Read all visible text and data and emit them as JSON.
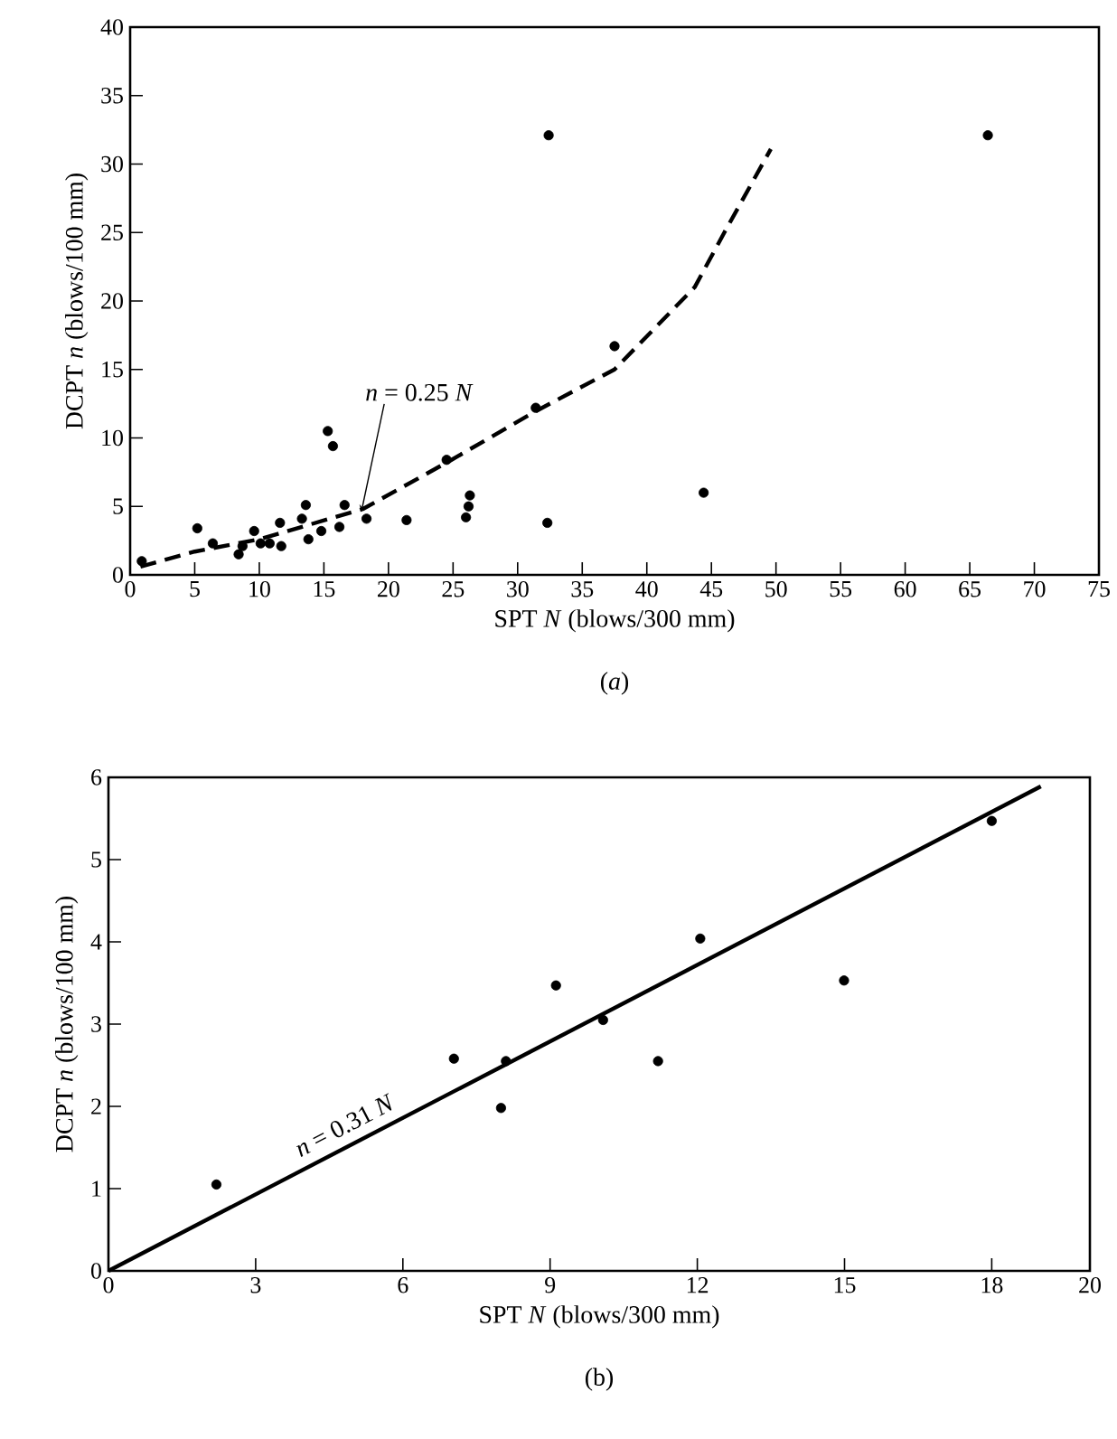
{
  "chart_data": [
    {
      "type": "scatter",
      "xlabel": "SPT *N* (blows/300 mm)",
      "ylabel": "DCPT *n* (blows/100 mm)",
      "xlim": [
        0,
        75
      ],
      "ylim": [
        0,
        40
      ],
      "xticks": [
        0,
        5,
        10,
        15,
        20,
        25,
        30,
        35,
        40,
        45,
        50,
        55,
        60,
        65,
        70,
        75
      ],
      "yticks": [
        0,
        5,
        10,
        15,
        20,
        25,
        30,
        35,
        40
      ],
      "series": [
        {
          "marker": "circle",
          "color": "#000000",
          "x": [
            0.9,
            5.2,
            6.4,
            8.4,
            8.7,
            9.6,
            10.1,
            10.8,
            11.6,
            11.7,
            13.3,
            13.6,
            13.8,
            14.8,
            15.3,
            15.7,
            16.2,
            16.6,
            18.3,
            21.4,
            24.5,
            26.0,
            26.2,
            26.3,
            31.4,
            32.4,
            32.3,
            37.5,
            44.4,
            66.4
          ],
          "values": [
            1.0,
            3.4,
            2.3,
            1.5,
            2.1,
            3.2,
            2.3,
            2.3,
            3.8,
            2.1,
            4.1,
            5.1,
            2.6,
            3.2,
            10.5,
            9.4,
            3.5,
            5.1,
            4.1,
            4.0,
            8.4,
            4.2,
            5.0,
            5.8,
            12.2,
            32.1,
            3.8,
            16.7,
            6.0,
            32.1
          ]
        },
        {
          "type": "line",
          "color": "#000000",
          "line_style": "dashed",
          "x": [
            0.8,
            5,
            10,
            18,
            24.7,
            31.3,
            37.5,
            43.7,
            46,
            49.6
          ],
          "values": [
            0.6,
            1.7,
            2.6,
            4.8,
            8.3,
            11.9,
            15,
            21,
            25,
            31.1
          ]
        }
      ],
      "annotations": [
        {
          "text": "*n* = 0.25 *N*",
          "x": 17.9,
          "y": 4.6
        },
        "(*a*)"
      ]
    },
    {
      "type": "scatter",
      "xlabel": "SPT *N* (blows/300 mm)",
      "ylabel": "DCPT *n* (blows/100 mm)",
      "xlim": [
        0,
        20
      ],
      "ylim": [
        0,
        6
      ],
      "xticks": [
        0,
        3,
        6,
        9,
        12,
        15,
        18,
        20
      ],
      "yticks": [
        0,
        1,
        2,
        3,
        4,
        5,
        6
      ],
      "series": [
        {
          "marker": "circle",
          "color": "#000000",
          "x": [
            2.2,
            7.04,
            8.0,
            8.1,
            9.12,
            10.08,
            11.2,
            12.06,
            14.99,
            18.0
          ],
          "values": [
            1.05,
            2.58,
            1.98,
            2.55,
            3.47,
            3.05,
            2.55,
            4.04,
            3.53,
            5.47
          ]
        },
        {
          "type": "line",
          "color": "#000000",
          "line_style": "solid",
          "x": [
            0,
            19
          ],
          "values": [
            0,
            5.89
          ]
        }
      ],
      "annotations": [
        {
          "text": "*n* = 0.31 *N*",
          "x": 5,
          "y": 1.55
        },
        "(b)"
      ]
    }
  ]
}
